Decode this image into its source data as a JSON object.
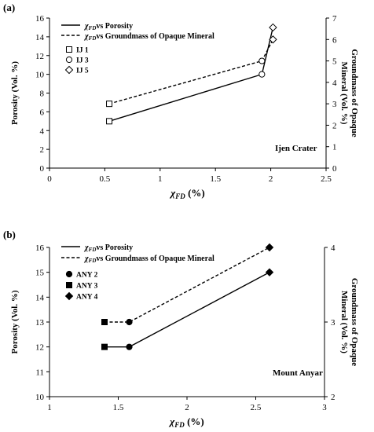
{
  "chart_data": [
    {
      "panel": "(a)",
      "type": "scatter",
      "annotation": "Ijen Crater",
      "x_axis": {
        "label": "χFD (%)",
        "label_symbol": "χ",
        "label_sub": "FD",
        "label_rest": " (%)",
        "range": [
          0,
          2.5
        ],
        "ticks": [
          0,
          0.5,
          1,
          1.5,
          2,
          2.5
        ],
        "tick_labels": [
          "0",
          "0.5",
          "1",
          "1.5",
          "2",
          "2.5"
        ]
      },
      "y_axis_left": {
        "label": "Porosity (Vol. %)",
        "range": [
          0,
          16
        ],
        "ticks": [
          0,
          2,
          4,
          6,
          8,
          10,
          12,
          14,
          16
        ],
        "tick_labels": [
          "0",
          "2",
          "4",
          "6",
          "8",
          "10",
          "12",
          "14",
          "16"
        ]
      },
      "y_axis_right": {
        "label_line1": "Groundmass of Opaque",
        "label_line2": "Mineral (Vol. %)",
        "range": [
          0,
          7
        ],
        "ticks": [
          0,
          1,
          2,
          3,
          4,
          5,
          6,
          7
        ],
        "tick_labels": [
          "0",
          "1",
          "2",
          "3",
          "4",
          "5",
          "6",
          "7"
        ]
      },
      "legend_lines": [
        {
          "label": "vs Porosity",
          "style": "solid"
        },
        {
          "label": "vs Groundmass of Opaque Mineral",
          "style": "dashed"
        }
      ],
      "legend_markers": [
        {
          "label": "IJ 1",
          "marker": "open-square"
        },
        {
          "label": "IJ 3",
          "marker": "open-circle"
        },
        {
          "label": "IJ 5",
          "marker": "open-diamond"
        }
      ],
      "series": [
        {
          "axis": "left",
          "style": "solid",
          "points": [
            {
              "x": 0.54,
              "y": 5,
              "marker": "open-square"
            },
            {
              "x": 1.92,
              "y": 10,
              "marker": "open-circle"
            },
            {
              "x": 2.02,
              "y": 15,
              "marker": "open-diamond"
            }
          ]
        },
        {
          "axis": "right",
          "style": "dashed",
          "points": [
            {
              "x": 0.54,
              "y": 3,
              "marker": "open-square"
            },
            {
              "x": 1.92,
              "y": 5,
              "marker": "open-circle"
            },
            {
              "x": 2.02,
              "y": 6,
              "marker": "open-diamond"
            }
          ]
        }
      ]
    },
    {
      "panel": "(b)",
      "type": "scatter",
      "annotation": "Mount Anyar",
      "x_axis": {
        "label": "χFD (%)",
        "label_symbol": "χ",
        "label_sub": "FD",
        "label_rest": " (%)",
        "range": [
          1,
          3
        ],
        "ticks": [
          1,
          1.5,
          2,
          2.5,
          3
        ],
        "tick_labels": [
          "1",
          "1.5",
          "2",
          "2.5",
          "3"
        ]
      },
      "y_axis_left": {
        "label": "Porosity (Vol. %)",
        "range": [
          10,
          16
        ],
        "ticks": [
          10,
          11,
          12,
          13,
          14,
          15,
          16
        ],
        "tick_labels": [
          "10",
          "11",
          "12",
          "13",
          "14",
          "15",
          "16"
        ]
      },
      "y_axis_right": {
        "label_line1": "Groundmass of Opaque",
        "label_line2": "Mineral (Vol. %)",
        "range": [
          2,
          4
        ],
        "ticks": [
          2,
          3,
          4
        ],
        "tick_labels": [
          "2",
          "3",
          "4"
        ]
      },
      "legend_lines": [
        {
          "label": "vs Porosity",
          "style": "solid"
        },
        {
          "label": "vs Groundmass of Opaque Mineral",
          "style": "dashed"
        }
      ],
      "legend_markers": [
        {
          "label": "ANY 2",
          "marker": "filled-circle"
        },
        {
          "label": "ANY 3",
          "marker": "filled-square"
        },
        {
          "label": "ANY 4",
          "marker": "filled-diamond"
        }
      ],
      "series": [
        {
          "axis": "left",
          "style": "solid",
          "points": [
            {
              "x": 1.4,
              "y": 12,
              "marker": "filled-square"
            },
            {
              "x": 1.58,
              "y": 12,
              "marker": "filled-circle"
            },
            {
              "x": 2.6,
              "y": 15,
              "marker": "filled-diamond"
            }
          ]
        },
        {
          "axis": "right",
          "style": "dashed",
          "points": [
            {
              "x": 1.4,
              "y": 3,
              "marker": "filled-square"
            },
            {
              "x": 1.58,
              "y": 3,
              "marker": "filled-circle"
            },
            {
              "x": 2.6,
              "y": 4,
              "marker": "filled-diamond"
            }
          ]
        }
      ]
    }
  ]
}
